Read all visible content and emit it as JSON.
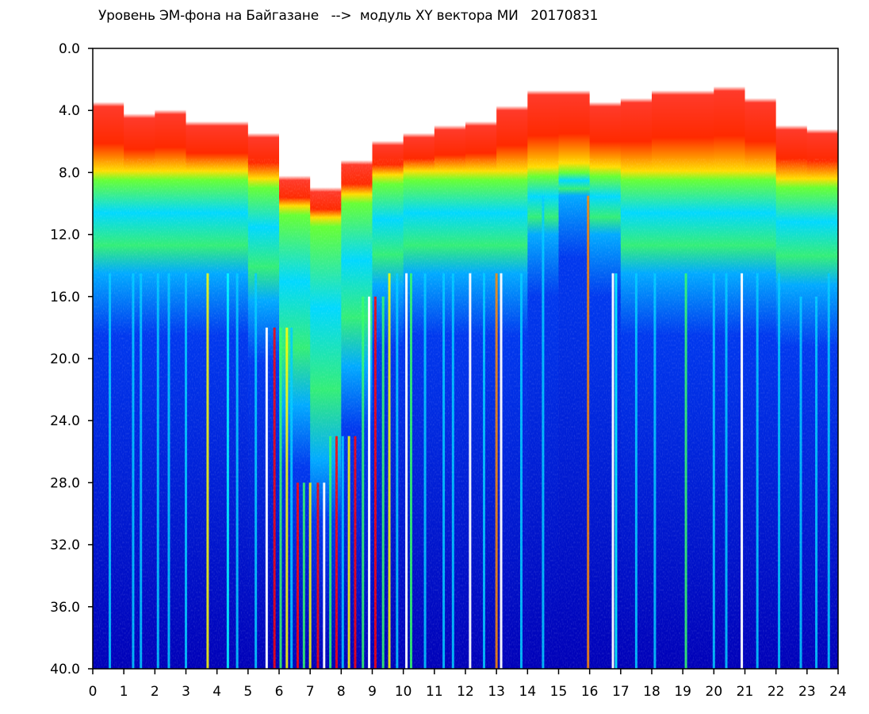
{
  "chart_data": {
    "type": "heatmap",
    "title": "Уровень ЭМ-фона на Байгазане   -->  модуль XY вектора МИ   20170831",
    "xlabel": "",
    "ylabel": "",
    "x_range": [
      0,
      24
    ],
    "y_range": [
      0,
      40
    ],
    "y_reversed": true,
    "x_ticks": [
      "0",
      "1",
      "2",
      "3",
      "4",
      "5",
      "6",
      "7",
      "8",
      "9",
      "10",
      "11",
      "12",
      "13",
      "14",
      "15",
      "16",
      "17",
      "18",
      "19",
      "20",
      "21",
      "22",
      "23",
      "24"
    ],
    "y_ticks": [
      "0.0",
      "4.0",
      "8.0",
      "12.0",
      "16.0",
      "20.0",
      "24.0",
      "28.0",
      "32.0",
      "36.0",
      "40.0"
    ],
    "colorscale": [
      "#0000b0",
      "#0033ff",
      "#00ccff",
      "#33ff66",
      "#ffff00",
      "#ff0000"
    ],
    "hourly_profile": [
      {
        "hour": 0,
        "red_top": 3.0,
        "green_top": 8.5,
        "green_bottom": 14.5
      },
      {
        "hour": 1,
        "red_top": 4.5,
        "green_top": 8.5,
        "green_bottom": 14.5
      },
      {
        "hour": 2,
        "red_top": 4.5,
        "green_top": 8.5,
        "green_bottom": 14.5
      },
      {
        "hour": 3,
        "red_top": 4.0,
        "green_top": 8.5,
        "green_bottom": 14.5
      },
      {
        "hour": 4,
        "red_top": 6.0,
        "green_top": 8.5,
        "green_bottom": 14.5
      },
      {
        "hour": 5,
        "red_top": 4.0,
        "green_top": 8.5,
        "green_bottom": 14.5
      },
      {
        "hour": 6,
        "red_top": 7.5,
        "green_top": 9.5,
        "green_bottom": 18.0
      },
      {
        "hour": 7,
        "red_top": 9.5,
        "green_top": 12.0,
        "green_bottom": 28.0
      },
      {
        "hour": 8,
        "red_top": 9.0,
        "green_top": 11.0,
        "green_bottom": 25.0
      },
      {
        "hour": 9,
        "red_top": 6.0,
        "green_top": 9.0,
        "green_bottom": 16.0
      },
      {
        "hour": 10,
        "red_top": 6.5,
        "green_top": 8.5,
        "green_bottom": 14.5
      },
      {
        "hour": 11,
        "red_top": 5.0,
        "green_top": 8.5,
        "green_bottom": 14.5
      },
      {
        "hour": 12,
        "red_top": 5.5,
        "green_top": 8.5,
        "green_bottom": 14.5
      },
      {
        "hour": 13,
        "red_top": 4.5,
        "green_top": 8.5,
        "green_bottom": 14.5
      },
      {
        "hour": 14,
        "red_top": 3.5,
        "green_top": 8.5,
        "green_bottom": 14.5
      },
      {
        "hour": 15,
        "red_top": 2.5,
        "green_top": 8.0,
        "green_bottom": 9.5
      },
      {
        "hour": 16,
        "red_top": 3.5,
        "green_top": 8.0,
        "green_bottom": 9.5
      },
      {
        "hour": 17,
        "red_top": 4.0,
        "green_top": 8.5,
        "green_bottom": 14.5
      },
      {
        "hour": 18,
        "red_top": 3.0,
        "green_top": 8.5,
        "green_bottom": 14.5
      },
      {
        "hour": 19,
        "red_top": 3.0,
        "green_top": 8.5,
        "green_bottom": 14.5
      },
      {
        "hour": 20,
        "red_top": 3.0,
        "green_top": 8.5,
        "green_bottom": 14.5
      },
      {
        "hour": 21,
        "red_top": 2.5,
        "green_top": 8.5,
        "green_bottom": 14.5
      },
      {
        "hour": 22,
        "red_top": 4.5,
        "green_top": 8.5,
        "green_bottom": 14.5
      },
      {
        "hour": 23,
        "red_top": 6.0,
        "green_top": 9.5,
        "green_bottom": 16.0
      },
      {
        "hour": 24,
        "red_top": 5.0,
        "green_top": 8.5,
        "green_bottom": 14.5
      }
    ],
    "vertical_streaks": [
      {
        "hour": 0.55,
        "color": "#00ccff"
      },
      {
        "hour": 1.3,
        "color": "#00ccff"
      },
      {
        "hour": 1.55,
        "color": "#00ccff"
      },
      {
        "hour": 2.1,
        "color": "#00ccff"
      },
      {
        "hour": 2.45,
        "color": "#00ccff"
      },
      {
        "hour": 3.0,
        "color": "#00ccff"
      },
      {
        "hour": 3.7,
        "color": "#ffff00"
      },
      {
        "hour": 4.35,
        "color": "#00ffff"
      },
      {
        "hour": 4.65,
        "color": "#00ccff"
      },
      {
        "hour": 5.25,
        "color": "#00ccff"
      },
      {
        "hour": 5.6,
        "color": "#ffffff"
      },
      {
        "hour": 5.85,
        "color": "#ff0000"
      },
      {
        "hour": 6.05,
        "color": "#33ff66"
      },
      {
        "hour": 6.25,
        "color": "#ffff00"
      },
      {
        "hour": 6.4,
        "color": "#00ccff"
      },
      {
        "hour": 6.6,
        "color": "#ff0000"
      },
      {
        "hour": 6.8,
        "color": "#33ff66"
      },
      {
        "hour": 7.0,
        "color": "#ffff00"
      },
      {
        "hour": 7.25,
        "color": "#ff0000"
      },
      {
        "hour": 7.45,
        "color": "#ffffff"
      },
      {
        "hour": 7.65,
        "color": "#33ff66"
      },
      {
        "hour": 7.85,
        "color": "#ff0000"
      },
      {
        "hour": 8.05,
        "color": "#00ccff"
      },
      {
        "hour": 8.25,
        "color": "#ffff00"
      },
      {
        "hour": 8.45,
        "color": "#ff0000"
      },
      {
        "hour": 8.7,
        "color": "#33ff66"
      },
      {
        "hour": 8.9,
        "color": "#ffffff"
      },
      {
        "hour": 9.1,
        "color": "#ff0000"
      },
      {
        "hour": 9.35,
        "color": "#33ff66"
      },
      {
        "hour": 9.55,
        "color": "#ffff00"
      },
      {
        "hour": 9.8,
        "color": "#00ccff"
      },
      {
        "hour": 10.1,
        "color": "#ffffff"
      },
      {
        "hour": 10.25,
        "color": "#33ff66"
      },
      {
        "hour": 10.7,
        "color": "#00ccff"
      },
      {
        "hour": 11.3,
        "color": "#00ccff"
      },
      {
        "hour": 11.6,
        "color": "#00ccff"
      },
      {
        "hour": 12.15,
        "color": "#ffffff"
      },
      {
        "hour": 12.6,
        "color": "#00ccff"
      },
      {
        "hour": 13.0,
        "color": "#ff8800"
      },
      {
        "hour": 13.15,
        "color": "#ffffff"
      },
      {
        "hour": 13.8,
        "color": "#00ccff"
      },
      {
        "hour": 14.5,
        "color": "#00ccff"
      },
      {
        "hour": 15.95,
        "color": "#ff8800"
      },
      {
        "hour": 16.75,
        "color": "#ffffff"
      },
      {
        "hour": 16.85,
        "color": "#00ffff"
      },
      {
        "hour": 17.5,
        "color": "#00ccff"
      },
      {
        "hour": 18.1,
        "color": "#00ccff"
      },
      {
        "hour": 19.1,
        "color": "#33ff66"
      },
      {
        "hour": 20.0,
        "color": "#00ccff"
      },
      {
        "hour": 20.4,
        "color": "#00ccff"
      },
      {
        "hour": 20.9,
        "color": "#ffffff"
      },
      {
        "hour": 21.4,
        "color": "#00ccff"
      },
      {
        "hour": 22.1,
        "color": "#00ccff"
      },
      {
        "hour": 22.8,
        "color": "#00ccff"
      },
      {
        "hour": 23.3,
        "color": "#00ccff"
      },
      {
        "hour": 23.7,
        "color": "#00ccff"
      }
    ],
    "grid": false,
    "legend": "none"
  }
}
